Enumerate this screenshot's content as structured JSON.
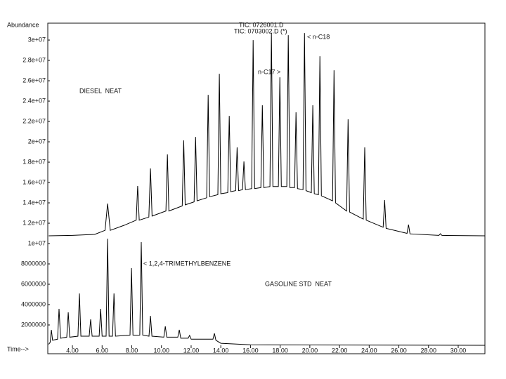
{
  "chart_data": {
    "type": "line",
    "y_label": "Abundance",
    "x_label": "Time-->",
    "annotations": [
      "< n-C18",
      "n-C17 >",
      "DIESEL  NEAT",
      "< 1,2,4-TRIMETHYLBENZENE",
      "GASOLINE STD  NEAT"
    ],
    "xlim": [
      2.34,
      31.8
    ],
    "ylim": [
      0,
      31660000
    ],
    "xticks": [
      {
        "value": 4,
        "label": "4.00"
      },
      {
        "value": 6,
        "label": "6.00"
      },
      {
        "value": 8,
        "label": "8.00"
      },
      {
        "value": 10,
        "label": "10.00"
      },
      {
        "value": 12,
        "label": "12.00"
      },
      {
        "value": 14,
        "label": "14.00"
      },
      {
        "value": 16,
        "label": "16.00"
      },
      {
        "value": 18,
        "label": "18.00"
      },
      {
        "value": 20,
        "label": "20.00"
      },
      {
        "value": 22,
        "label": "22.00"
      },
      {
        "value": 24,
        "label": "24.00"
      },
      {
        "value": 26,
        "label": "26.00"
      },
      {
        "value": 28,
        "label": "28.00"
      },
      {
        "value": 30,
        "label": "30.00"
      }
    ],
    "yticks": [
      2000000,
      4000000,
      6000000,
      8000000,
      {
        "value": 10000000,
        "label": "1e+07"
      },
      {
        "value": 12000000,
        "label": "1.2e+07"
      },
      {
        "value": 14000000,
        "label": "1.4e+07"
      },
      {
        "value": 16000000,
        "label": "1.6e+07"
      },
      {
        "value": 18000000,
        "label": "1.8e+07"
      },
      {
        "value": 20000000,
        "label": "2e+07"
      },
      {
        "value": 22000000,
        "label": "2.2e+07"
      },
      {
        "value": 24000000,
        "label": "2.4e+07"
      },
      {
        "value": 26000000,
        "label": "2.6e+07"
      },
      {
        "value": 28000000,
        "label": "2.8e+07"
      },
      {
        "value": 30000000,
        "label": "3e+07"
      }
    ],
    "series": [
      {
        "name": "TIC: 0726001.D",
        "color": "#000000",
        "x": [
          2.4,
          4.0,
          5.5,
          6.2,
          6.37,
          6.55,
          7.5,
          8.3,
          8.4,
          8.5,
          9.15,
          9.26,
          9.37,
          10.3,
          10.4,
          10.5,
          11.4,
          11.5,
          11.6,
          12.2,
          12.3,
          12.4,
          13.05,
          13.15,
          13.25,
          13.8,
          13.9,
          14.0,
          14.47,
          14.57,
          14.67,
          15.0,
          15.1,
          15.2,
          15.46,
          15.56,
          15.66,
          16.08,
          16.18,
          16.28,
          16.7,
          16.8,
          16.9,
          17.31,
          17.41,
          17.51,
          17.88,
          17.98,
          18.08,
          18.45,
          18.55,
          18.65,
          18.97,
          19.07,
          19.17,
          19.54,
          19.64,
          19.74,
          20.1,
          20.2,
          20.3,
          20.58,
          20.68,
          20.78,
          21.53,
          21.63,
          21.73,
          22.48,
          22.58,
          22.68,
          23.6,
          23.7,
          23.8,
          24.94,
          25.04,
          25.14,
          26.55,
          26.65,
          26.75,
          28.7,
          28.8,
          28.9,
          31.8
        ],
        "values": [
          10760000,
          10800000,
          10900000,
          11300000,
          13930000,
          11300000,
          11800000,
          12300000,
          15660000,
          12300000,
          12600000,
          17380000,
          12700000,
          13200000,
          18760000,
          13200000,
          13700000,
          20140000,
          13800000,
          14100000,
          20480000,
          14200000,
          14500000,
          24620000,
          14600000,
          14800000,
          26690000,
          14900000,
          15000000,
          22550000,
          15100000,
          15200000,
          19450000,
          15200000,
          15300000,
          18070000,
          15300000,
          15400000,
          30000000,
          15400000,
          15500000,
          23590000,
          15500000,
          15600000,
          30690000,
          15600000,
          15600000,
          26340000,
          15600000,
          15600000,
          30480000,
          15500000,
          15500000,
          22900000,
          15400000,
          15300000,
          30690000,
          15200000,
          15000000,
          23590000,
          14900000,
          14800000,
          28410000,
          14700000,
          14200000,
          27030000,
          14000000,
          13200000,
          22210000,
          13100000,
          12400000,
          19450000,
          12300000,
          11600000,
          14280000,
          11500000,
          11000000,
          11860000,
          10950000,
          10800000,
          10970000,
          10800000,
          10760000
        ]
      },
      {
        "name": "TIC: 0703002.D (*)",
        "color": "#000000",
        "x": [
          2.4,
          2.5,
          2.58,
          2.66,
          3.0,
          3.1,
          3.2,
          3.62,
          3.72,
          3.82,
          4.37,
          4.47,
          4.57,
          5.13,
          5.23,
          5.33,
          5.8,
          5.9,
          6.0,
          6.27,
          6.37,
          6.47,
          6.7,
          6.8,
          6.9,
          7.88,
          7.98,
          8.08,
          8.54,
          8.64,
          8.74,
          9.16,
          9.26,
          9.36,
          10.16,
          10.26,
          10.36,
          11.1,
          11.2,
          11.3,
          11.8,
          11.9,
          12.0,
          13.47,
          13.57,
          13.67,
          14.0,
          16.0,
          31.8
        ],
        "values": [
          100000,
          300000,
          1520000,
          500000,
          600000,
          3590000,
          700000,
          800000,
          3240000,
          800000,
          900000,
          5100000,
          900000,
          900000,
          2550000,
          900000,
          900000,
          3590000,
          900000,
          900000,
          10480000,
          900000,
          900000,
          5100000,
          900000,
          1000000,
          7590000,
          1000000,
          1000000,
          10140000,
          1000000,
          900000,
          2900000,
          900000,
          800000,
          1860000,
          800000,
          800000,
          1520000,
          700000,
          700000,
          970000,
          600000,
          600000,
          1170000,
          500000,
          200000,
          50000,
          0
        ]
      }
    ]
  }
}
